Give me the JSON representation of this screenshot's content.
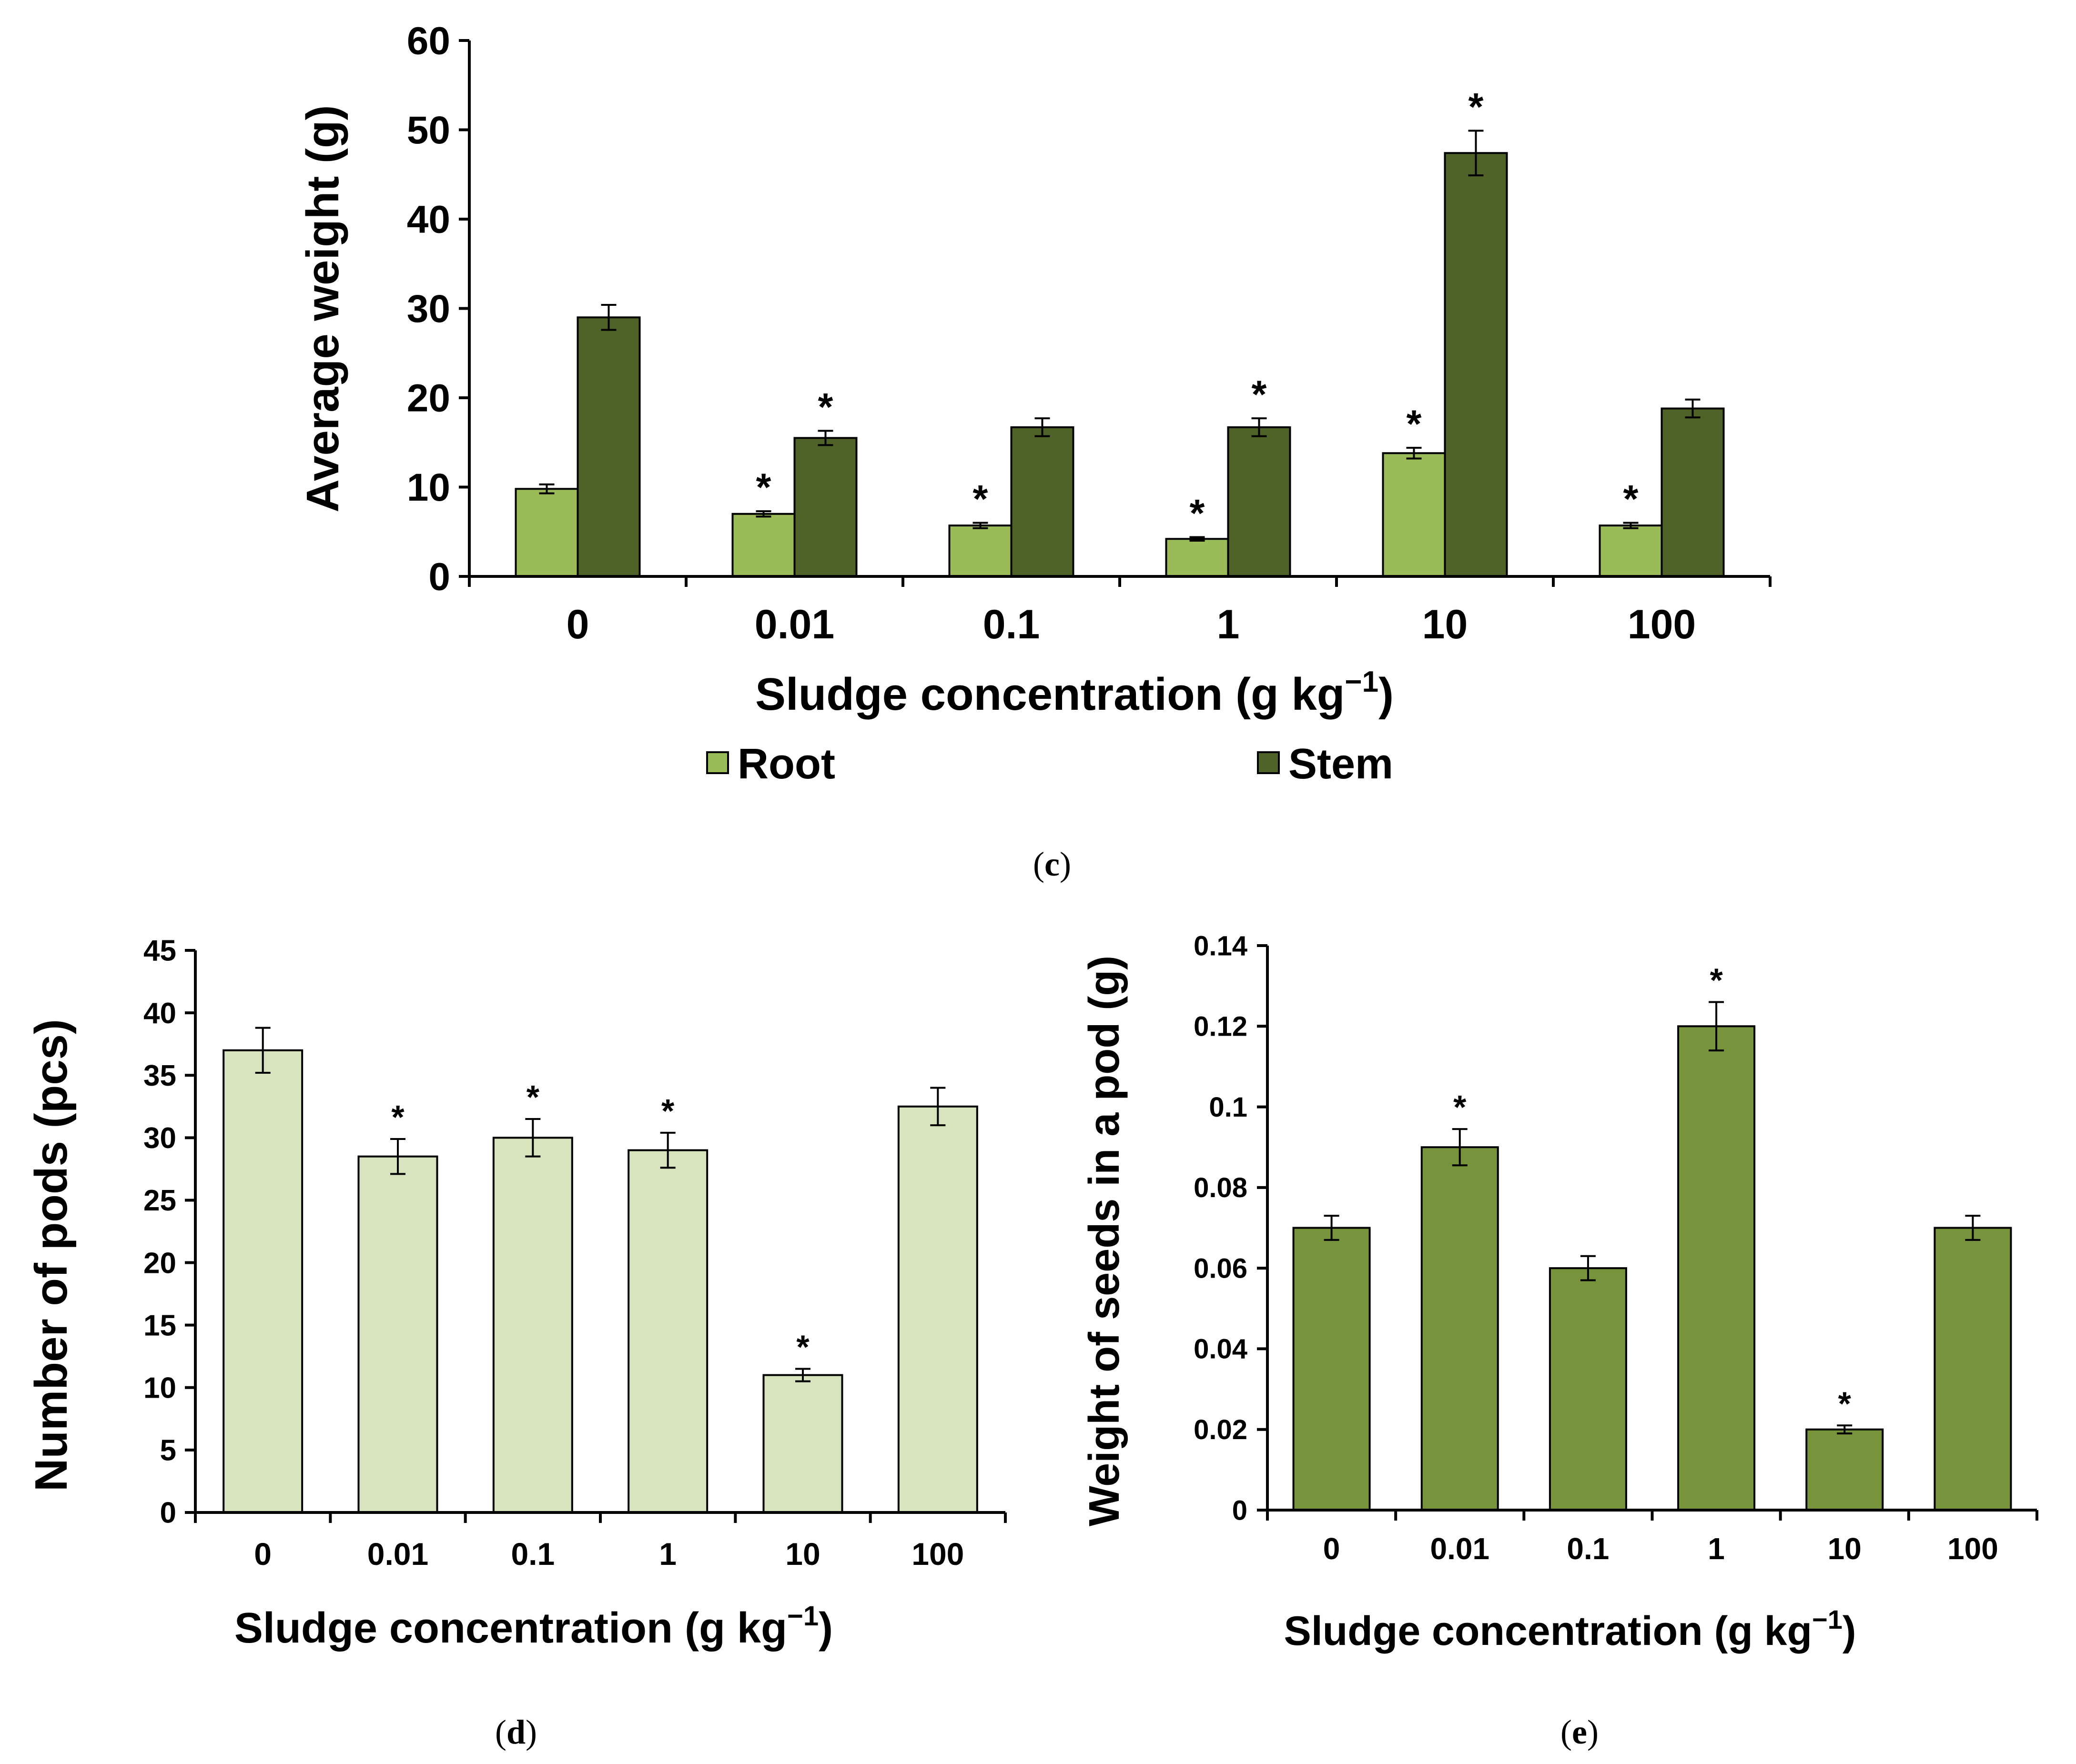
{
  "colors": {
    "root": "#9bbb59",
    "stem": "#4f6228",
    "pods": "#d7e4bd",
    "seeds": "#77933c",
    "axis": "#000000"
  },
  "chart_data": [
    {
      "id": "c",
      "type": "bar",
      "panel_label": "c",
      "categories": [
        "0",
        "0.01",
        "0.1",
        "1",
        "10",
        "100"
      ],
      "series": [
        {
          "name": "Root",
          "values": [
            9.8,
            7.0,
            5.7,
            4.2,
            13.8,
            5.7
          ],
          "errors": [
            0.5,
            0.3,
            0.3,
            0.2,
            0.6,
            0.3
          ],
          "significant": [
            false,
            true,
            true,
            true,
            true,
            true
          ]
        },
        {
          "name": "Stem",
          "values": [
            29.0,
            15.5,
            16.7,
            16.7,
            47.4,
            18.8
          ],
          "errors": [
            1.4,
            0.8,
            1.0,
            1.0,
            2.5,
            1.0
          ],
          "significant": [
            false,
            true,
            false,
            true,
            true,
            false
          ]
        }
      ],
      "xlabel": "Sludge concentration (g kg",
      "xlabel_sup": "−1",
      "xlabel_end": ")",
      "ylabel": "Average weight  (g)",
      "ylim": [
        0,
        60
      ],
      "yticks": [
        "0",
        "10",
        "20",
        "30",
        "40",
        "50",
        "60"
      ],
      "legend": [
        "Root",
        "Stem"
      ],
      "legend_position": "bottom"
    },
    {
      "id": "d",
      "type": "bar",
      "panel_label": "d",
      "categories": [
        "0",
        "0.01",
        "0.1",
        "1",
        "10",
        "100"
      ],
      "series": [
        {
          "name": "Number of pods",
          "values": [
            37.0,
            28.5,
            30.0,
            29.0,
            11.0,
            32.5
          ],
          "errors": [
            1.8,
            1.4,
            1.5,
            1.4,
            0.5,
            1.5
          ],
          "significant": [
            false,
            true,
            true,
            true,
            true,
            false
          ]
        }
      ],
      "xlabel": "Sludge concentration (g kg",
      "xlabel_sup": "−1",
      "xlabel_end": ")",
      "ylabel": "Number of pods (pcs)",
      "ylim": [
        0,
        45
      ],
      "yticks": [
        "0",
        "5",
        "10",
        "15",
        "20",
        "25",
        "30",
        "35",
        "40",
        "45"
      ]
    },
    {
      "id": "e",
      "type": "bar",
      "panel_label": "e",
      "categories": [
        "0",
        "0.01",
        "0.1",
        "1",
        "10",
        "100"
      ],
      "series": [
        {
          "name": "Weight of seeds in a pod",
          "values": [
            0.07,
            0.09,
            0.06,
            0.12,
            0.02,
            0.07
          ],
          "errors": [
            0.003,
            0.0045,
            0.003,
            0.006,
            0.001,
            0.003
          ],
          "significant": [
            false,
            true,
            false,
            true,
            true,
            false
          ]
        }
      ],
      "xlabel": "Sludge concentration (g kg",
      "xlabel_sup": "−1",
      "xlabel_end": ")",
      "ylabel": "Weight of seeds in a pod (g)",
      "ylim": [
        0,
        0.14
      ],
      "yticks": [
        "0",
        "0.02",
        "0.04",
        "0.06",
        "0.08",
        "0.1",
        "0.12",
        "0.14"
      ]
    }
  ]
}
